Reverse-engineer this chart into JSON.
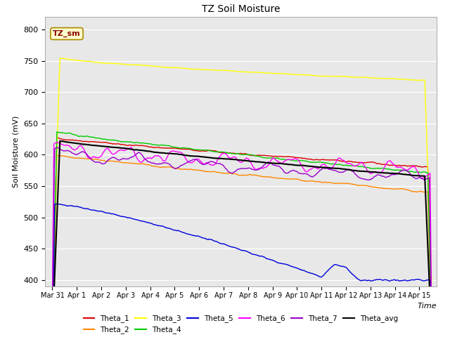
{
  "title": "TZ Soil Moisture",
  "xlabel": "Time",
  "ylabel": "Soil Moisture (mV)",
  "legend_label": "TZ_sm",
  "series_labels": [
    "Theta_1",
    "Theta_2",
    "Theta_3",
    "Theta_4",
    "Theta_5",
    "Theta_6",
    "Theta_7",
    "Theta_avg"
  ],
  "series_colors": [
    "#dd0000",
    "#ff8800",
    "#ffff00",
    "#00cc00",
    "#0000dd",
    "#ff00ff",
    "#9900cc",
    "#000000"
  ],
  "x_tick_labels": [
    "Mar 31",
    "Apr 1",
    "Apr 2",
    "Apr 3",
    "Apr 4",
    "Apr 5",
    "Apr 6",
    "Apr 7",
    "Apr 8",
    "Apr 9",
    "Apr 10",
    "Apr 11",
    "Apr 12",
    "Apr 13",
    "Apr 14",
    "Apr 15"
  ],
  "ylim": [
    390,
    820
  ],
  "yticks": [
    400,
    450,
    500,
    550,
    600,
    650,
    700,
    750,
    800
  ],
  "background_color": "#e8e8e8",
  "fig_color": "#ffffff",
  "grid_color": "#ffffff"
}
